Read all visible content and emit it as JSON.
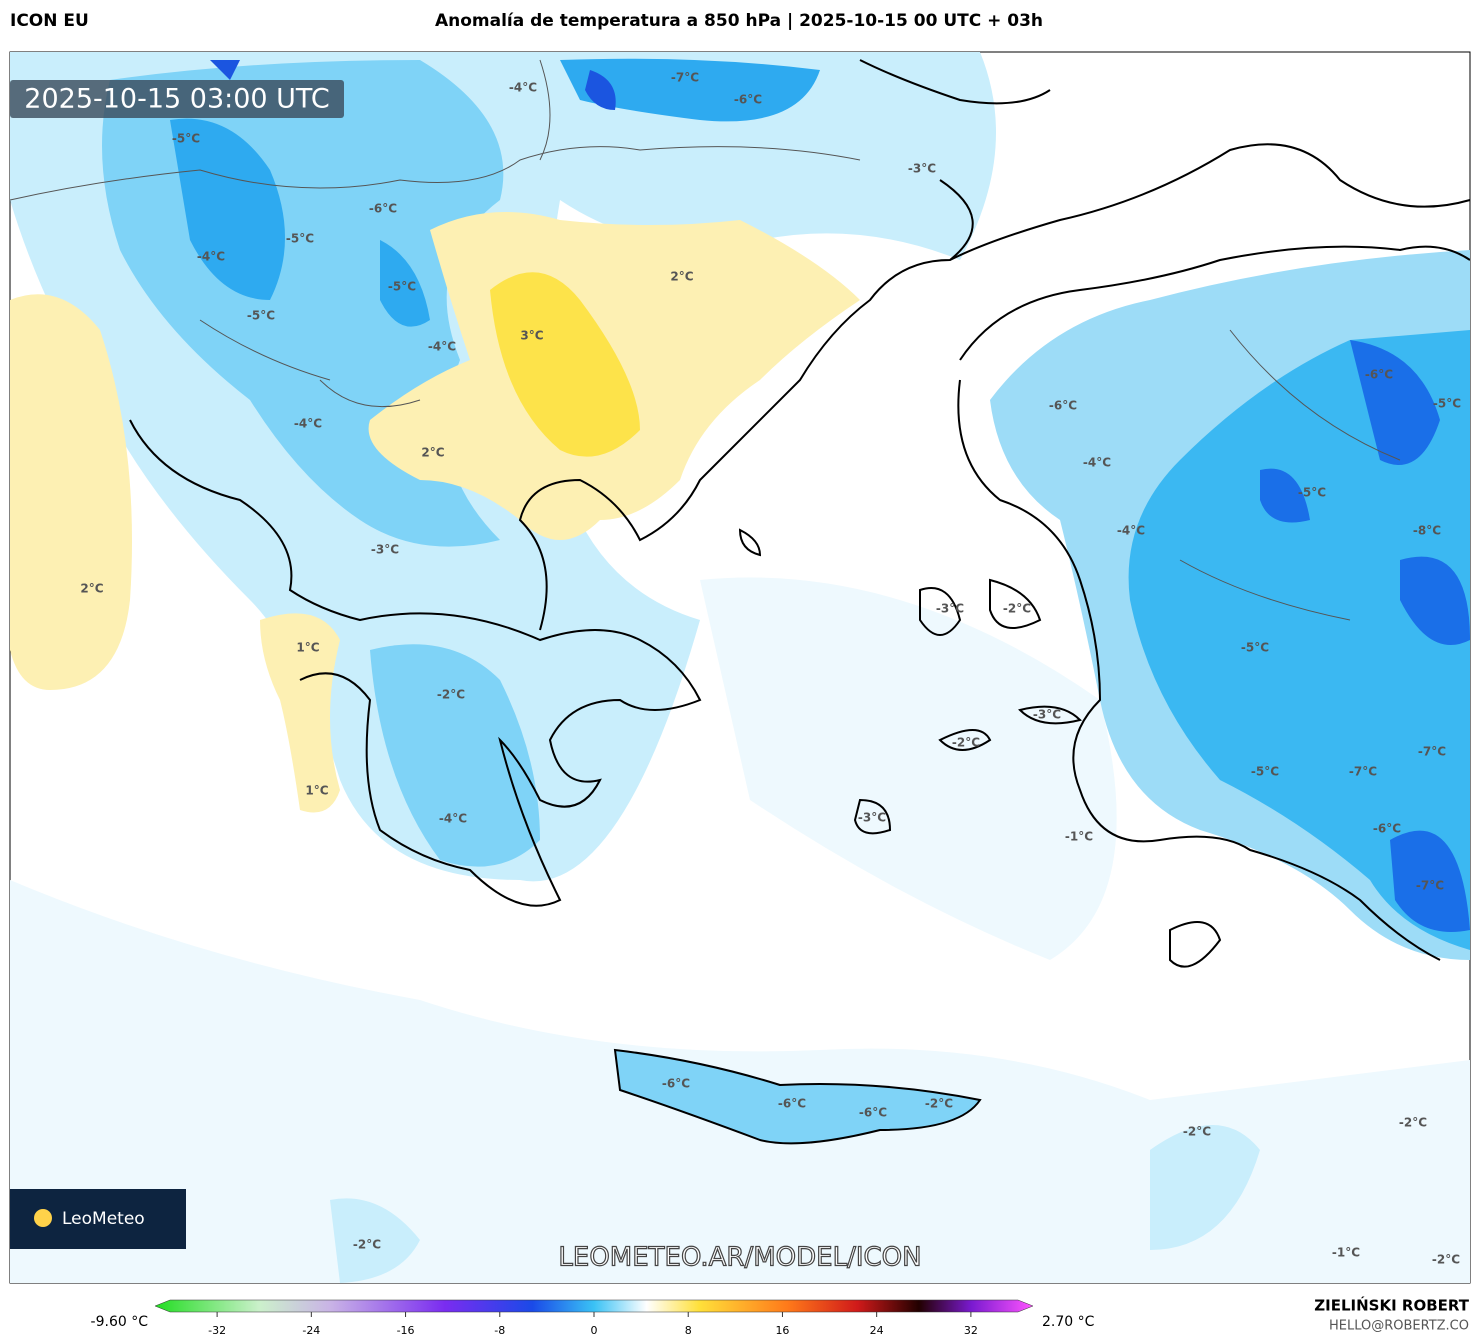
{
  "header": {
    "model": "ICON EU",
    "title": "Anomalía de temperatura a 850 hPa | 2025-10-15 00 UTC + 03h"
  },
  "map": {
    "timestamp": "2025-10-15 03:00 UTC",
    "contour_labels": [
      "-4°C",
      "-7°C",
      "-6°C",
      "-5°C",
      "-3°C",
      "-6°C",
      "-5°C",
      "-4°C",
      "2°C",
      "-5°C",
      "-5°C",
      "3°C",
      "-4°C",
      "-6°C",
      "-6°C",
      "-5°C",
      "-4°C",
      "2°C",
      "-4°C",
      "-5°C",
      "-4°C",
      "-8°C",
      "-3°C",
      "2°C",
      "-3°C",
      "-2°C",
      "1°C",
      "-5°C",
      "-2°C",
      "-3°C",
      "-2°C",
      "-7°C",
      "-5°C",
      "-7°C",
      "1°C",
      "-4°C",
      "-3°C",
      "-1°C",
      "-6°C",
      "-7°C",
      "-6°C",
      "-6°C",
      "-6°C",
      "-2°C",
      "-2°C",
      "-2°C",
      "-2°C",
      "-1°C",
      "-2°C"
    ],
    "logo": "LeoMeteo",
    "watermark": "LEOMETEO.AR/MODEL/ICON"
  },
  "colorbar": {
    "min_label": "-9.60 °C",
    "max_label": "2.70 °C",
    "lim": [
      -36,
      36
    ],
    "ticks": [
      -32,
      -24,
      -16,
      -8,
      0,
      8,
      16,
      24,
      32
    ]
  },
  "footer": {
    "author": "ZIELIŃSKI ROBERT",
    "email": "HELLO@ROBERTZ.CO"
  }
}
